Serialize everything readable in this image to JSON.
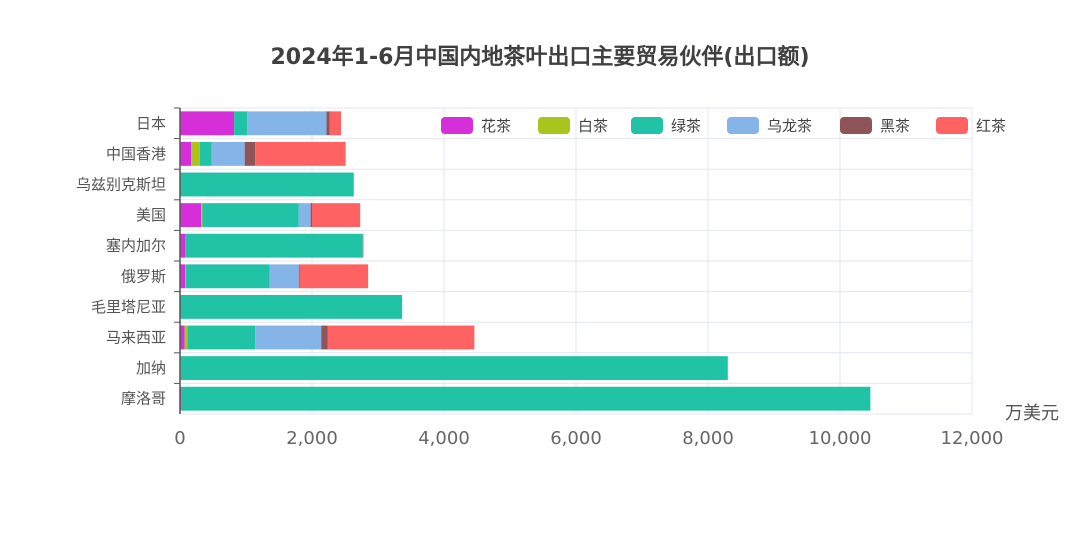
{
  "chart_data": {
    "type": "bar",
    "orientation": "horizontal",
    "stacked": true,
    "title": "2024年1-6月中国内地茶叶出口主要贸易伙伴(出口额)",
    "unit": "万美元",
    "xlim": [
      0,
      12000
    ],
    "xticks": [
      0,
      2000,
      4000,
      6000,
      8000,
      10000,
      12000
    ],
    "xtick_labels": [
      "0",
      "2,000",
      "4,000",
      "6,000",
      "8,000",
      "10,000",
      "12,000"
    ],
    "grid": true,
    "legend_position": "top-right",
    "categories": [
      "日本",
      "中国香港",
      "乌兹别克斯坦",
      "美国",
      "塞内加尔",
      "俄罗斯",
      "毛里塔尼亚",
      "马来西亚",
      "加纳",
      "摩洛哥"
    ],
    "series": [
      {
        "name": "花茶",
        "color": "#d62fd9",
        "values": [
          820,
          170,
          5,
          320,
          80,
          80,
          5,
          70,
          10,
          20
        ]
      },
      {
        "name": "白茶",
        "color": "#a8c51e",
        "values": [
          0,
          130,
          0,
          20,
          0,
          10,
          0,
          40,
          0,
          0
        ]
      },
      {
        "name": "绿茶",
        "color": "#20c3a5",
        "values": [
          200,
          180,
          2620,
          1460,
          2690,
          1270,
          3360,
          1030,
          8290,
          10440
        ]
      },
      {
        "name": "乌龙茶",
        "color": "#85b5e8",
        "values": [
          1200,
          500,
          0,
          180,
          0,
          440,
          0,
          1000,
          0,
          0
        ]
      },
      {
        "name": "黑茶",
        "color": "#8f5458",
        "values": [
          50,
          160,
          0,
          20,
          0,
          10,
          0,
          100,
          0,
          0
        ]
      },
      {
        "name": "红茶",
        "color": "#ff6262",
        "values": [
          170,
          1370,
          10,
          730,
          10,
          1040,
          0,
          2220,
          0,
          0
        ]
      }
    ]
  }
}
